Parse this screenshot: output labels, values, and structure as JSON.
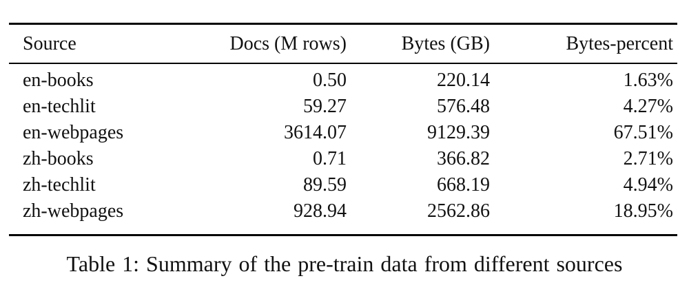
{
  "table": {
    "columns": [
      "Source",
      "Docs (M rows)",
      "Bytes (GB)",
      "Bytes-percent"
    ],
    "rows": [
      {
        "source": "en-books",
        "docs": "0.50",
        "bytes": "220.14",
        "bytes_percent": "1.63%"
      },
      {
        "source": "en-techlit",
        "docs": "59.27",
        "bytes": "576.48",
        "bytes_percent": "4.27%"
      },
      {
        "source": "en-webpages",
        "docs": "3614.07",
        "bytes": "9129.39",
        "bytes_percent": "67.51%"
      },
      {
        "source": "zh-books",
        "docs": "0.71",
        "bytes": "366.82",
        "bytes_percent": "2.71%"
      },
      {
        "source": "zh-techlit",
        "docs": "89.59",
        "bytes": "668.19",
        "bytes_percent": "4.94%"
      },
      {
        "source": "zh-webpages",
        "docs": "928.94",
        "bytes": "2562.86",
        "bytes_percent": "18.95%"
      }
    ]
  },
  "caption": "Table 1: Summary of the pre-train data from different sources",
  "colors": {
    "background": "#ffffff",
    "text": "#111111",
    "rule": "#000000"
  }
}
